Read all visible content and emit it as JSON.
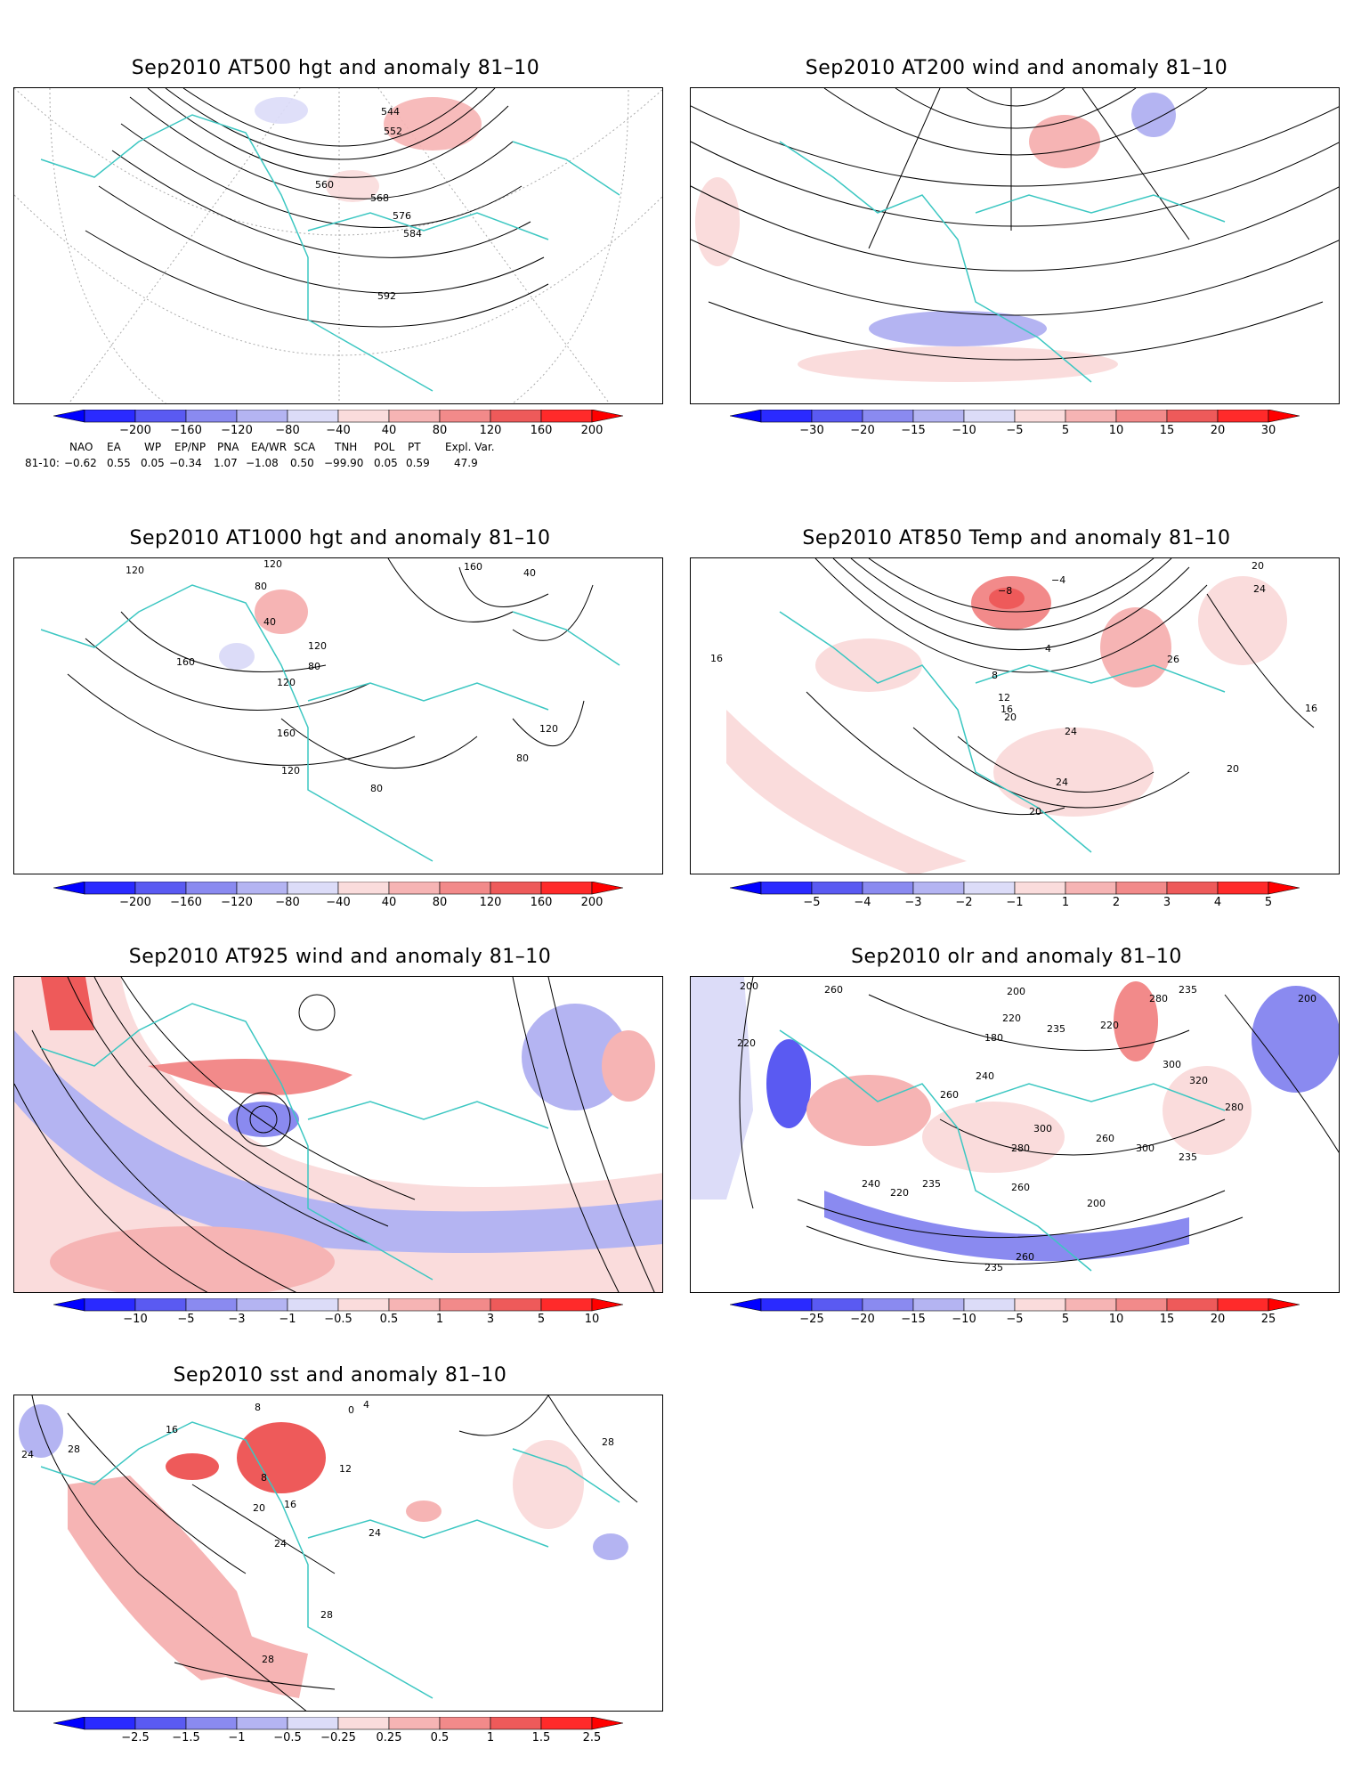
{
  "panels": [
    {
      "id": "p500",
      "title": "Sep2010 AT500 hgt and anomaly 81–10",
      "colorbar": {
        "ticks": [
          "−200",
          "−160",
          "−120",
          "−80",
          "−40",
          "40",
          "80",
          "120",
          "160",
          "200"
        ]
      },
      "contour_labels": [
        "544",
        "552",
        "560",
        "568",
        "576",
        "584",
        "592"
      ]
    },
    {
      "id": "p200",
      "title": "Sep2010 AT200 wind and anomaly 81–10",
      "colorbar": {
        "ticks": [
          "−30",
          "−20",
          "−15",
          "−10",
          "−5",
          "5",
          "10",
          "15",
          "20",
          "30"
        ]
      },
      "contour_labels": []
    },
    {
      "id": "p1000",
      "title": "Sep2010 AT1000 hgt and anomaly 81–10",
      "colorbar": {
        "ticks": [
          "−200",
          "−160",
          "−120",
          "−80",
          "−40",
          "40",
          "80",
          "120",
          "160",
          "200"
        ]
      },
      "contour_labels": [
        "120",
        "120",
        "80",
        "160",
        "40",
        "120",
        "40",
        "80",
        "160",
        "120",
        "160",
        "120",
        "80",
        "120",
        "80"
      ]
    },
    {
      "id": "p850",
      "title": "Sep2010 AT850 Temp and anomaly 81–10",
      "colorbar": {
        "ticks": [
          "−5",
          "−4",
          "−3",
          "−2",
          "−1",
          "1",
          "2",
          "3",
          "4",
          "5"
        ]
      },
      "contour_labels": [
        "−8",
        "−4",
        "4",
        "20",
        "24",
        "16",
        "8",
        "12",
        "16",
        "20",
        "24",
        "26",
        "16",
        "24",
        "20",
        "20"
      ]
    },
    {
      "id": "p925",
      "title": "Sep2010 AT925 wind and anomaly 81–10",
      "colorbar": {
        "ticks": [
          "−10",
          "−5",
          "−3",
          "−1",
          "−0.5",
          "0.5",
          "1",
          "3",
          "5",
          "10"
        ]
      },
      "contour_labels": []
    },
    {
      "id": "polr",
      "title": "Sep2010 olr and anomaly 81–10",
      "colorbar": {
        "ticks": [
          "−25",
          "−20",
          "−15",
          "−10",
          "−5",
          "5",
          "10",
          "15",
          "20",
          "25"
        ]
      },
      "contour_labels": [
        "260",
        "200",
        "220",
        "180",
        "200",
        "235",
        "220",
        "280",
        "235",
        "200",
        "220",
        "240",
        "260",
        "300",
        "280",
        "320",
        "300",
        "260",
        "235",
        "280",
        "300",
        "260",
        "240",
        "235",
        "220",
        "200",
        "260",
        "235"
      ]
    },
    {
      "id": "psst",
      "title": "Sep2010 sst and anomaly 81–10",
      "colorbar": {
        "ticks": [
          "−2.5",
          "−1.5",
          "−1",
          "−0.5",
          "−0.25",
          "0.25",
          "0.5",
          "1",
          "1.5",
          "2.5"
        ]
      },
      "contour_labels": [
        "24",
        "28",
        "16",
        "8",
        "4",
        "0",
        "8",
        "12",
        "16",
        "20",
        "24",
        "24",
        "28",
        "28",
        "28"
      ]
    }
  ],
  "teleconnections": {
    "headers": [
      "NAO",
      "EA",
      "WP",
      "EP/NP",
      "PNA",
      "EA/WR",
      "SCA",
      "TNH",
      "POL",
      "PT",
      "Expl. Var."
    ],
    "row_label": "81-10:",
    "values": [
      "−0.62",
      "0.55",
      "0.05",
      "−0.34",
      "1.07",
      "−1.08",
      "0.50",
      "−99.90",
      "0.05",
      "0.59",
      "47.9"
    ]
  },
  "colors": {
    "coast": "#3cc7c2",
    "neg": [
      "#2a2aff",
      "#5a5af2",
      "#8a8af0",
      "#b4b4f2",
      "#dcdcf8"
    ],
    "pos": [
      "#fadcdc",
      "#f6b4b4",
      "#f28a8a",
      "#ee5a5a",
      "#ff2a2a"
    ],
    "contour": "#000000"
  }
}
